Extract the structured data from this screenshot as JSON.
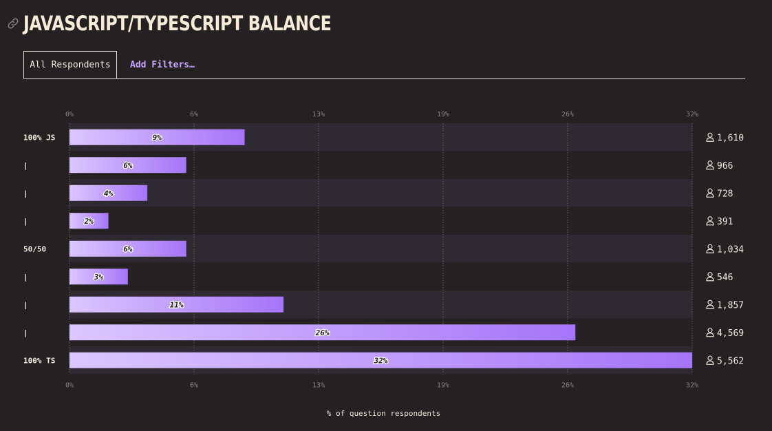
{
  "header": {
    "title": "JAVASCRIPT/TYPESCRIPT BALANCE",
    "link_icon": "link-icon"
  },
  "tabs": {
    "active_label": "All Respondents",
    "filter_label": "Add Filters…"
  },
  "colors": {
    "background": "#252021",
    "row_band": "#2f2932",
    "bar_start": "#dcc7ff",
    "bar_end": "#a575f8",
    "accent": "#c9a7ff"
  },
  "chart_data": {
    "type": "bar",
    "orientation": "horizontal",
    "categories": [
      "100% JS",
      "|",
      "|",
      "|",
      "50/50",
      "|",
      "|",
      "|",
      "100% TS"
    ],
    "values": [
      9,
      6,
      4,
      2,
      6,
      3,
      11,
      26,
      32
    ],
    "value_labels": [
      "9%",
      "6%",
      "4%",
      "2%",
      "6%",
      "3%",
      "11%",
      "26%",
      "32%"
    ],
    "counts": [
      "1,610",
      "966",
      "728",
      "391",
      "1,034",
      "546",
      "1,857",
      "4,569",
      "5,562"
    ],
    "x_ticks": [
      "0%",
      "6%",
      "13%",
      "19%",
      "26%",
      "32%"
    ],
    "xlim": [
      0,
      32
    ],
    "xlabel": "% of question respondents",
    "grid": true,
    "alternating_row_bands": true
  }
}
